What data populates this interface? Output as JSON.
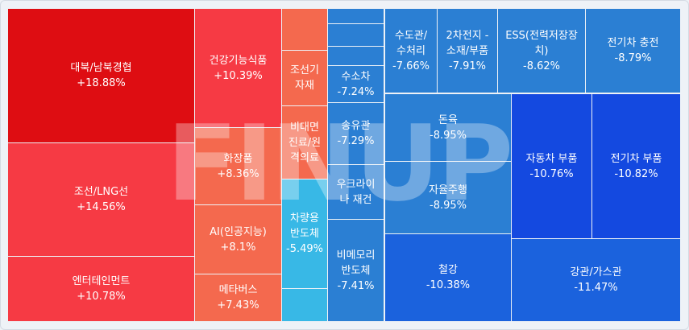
{
  "chart_data": {
    "type": "treemap",
    "watermark": "FINUP",
    "colors": {
      "up_strong": "#de0d12",
      "up_mid": "#f63a44",
      "up_light": "#f4694e",
      "flat_blue": "#38b8e6",
      "down_light": "#2b7fd3",
      "down_mid": "#1b62dd",
      "down_strong": "#1449e0"
    },
    "tiles": [
      {
        "name": "대북/남북경협",
        "change": "+18.88%",
        "color": "up_strong"
      },
      {
        "name": "조선/LNG선",
        "change": "+14.56%",
        "color": "up_mid"
      },
      {
        "name": "엔터테인먼트",
        "change": "+10.78%",
        "color": "up_mid"
      },
      {
        "name": "건강기능식품",
        "change": "+10.39%",
        "color": "up_mid"
      },
      {
        "name": "화장품",
        "change": "+8.36%",
        "color": "up_light"
      },
      {
        "name": "AI(인공지능)",
        "change": "+8.1%",
        "color": "up_light"
      },
      {
        "name": "메타버스",
        "change": "+7.43%",
        "color": "up_light"
      },
      {
        "name": "",
        "change": "",
        "color": "up_light"
      },
      {
        "name": "조선기\n자재",
        "change": "",
        "color": "up_light"
      },
      {
        "name": "비대면\n진료/원\n격의료",
        "change": "",
        "color": "up_light"
      },
      {
        "name": "차량용\n반도체",
        "change": "-5.49%",
        "color": "flat_blue"
      },
      {
        "name": "",
        "change": "",
        "color": "flat_blue"
      },
      {
        "name": "",
        "change": "",
        "color": "down_light"
      },
      {
        "name": "",
        "change": "",
        "color": "down_light"
      },
      {
        "name": "",
        "change": "",
        "color": "down_light"
      },
      {
        "name": "수소차",
        "change": "-7.24%",
        "color": "down_light"
      },
      {
        "name": "송유관",
        "change": "-7.29%",
        "color": "down_light"
      },
      {
        "name": "우크라이\n나 재건",
        "change": "",
        "color": "down_light"
      },
      {
        "name": "비메모리\n반도체",
        "change": "-7.41%",
        "color": "down_light"
      },
      {
        "name": "수도관/\n수처리",
        "change": "-7.66%",
        "color": "down_light"
      },
      {
        "name": "2차전지 -\n소재/부품",
        "change": "-7.91%",
        "color": "down_light"
      },
      {
        "name": "ESS(전력저장장\n치)",
        "change": "-8.62%",
        "color": "down_light"
      },
      {
        "name": "전기차 충전",
        "change": "-8.79%",
        "color": "down_light"
      },
      {
        "name": "돈육",
        "change": "-8.95%",
        "color": "down_light"
      },
      {
        "name": "자율주행",
        "change": "-8.95%",
        "color": "down_light"
      },
      {
        "name": "철강",
        "change": "-10.38%",
        "color": "down_mid"
      },
      {
        "name": "자동차 부품",
        "change": "-10.76%",
        "color": "down_strong"
      },
      {
        "name": "전기차 부품",
        "change": "-10.82%",
        "color": "down_strong"
      },
      {
        "name": "강관/가스관",
        "change": "-11.47%",
        "color": "down_mid"
      }
    ]
  }
}
